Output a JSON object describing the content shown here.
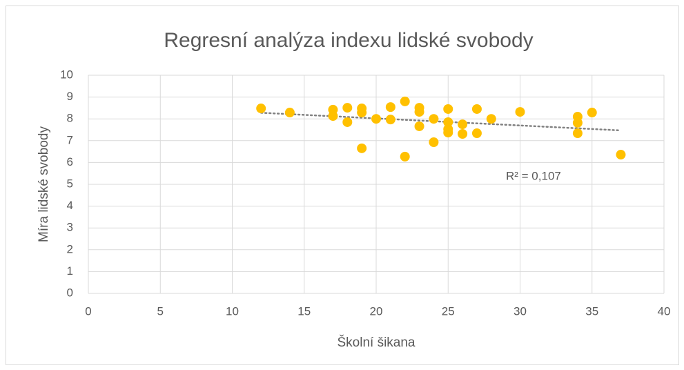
{
  "chart_data": {
    "type": "scatter",
    "title": "Regresní analýza indexu lidské svobody",
    "x_label": "Školní šikana",
    "y_label": "Míra lidské svobody",
    "x": [
      12,
      14,
      17,
      17,
      18,
      18,
      19,
      19,
      19,
      20,
      21,
      21,
      22,
      22,
      23,
      23,
      23,
      24,
      24,
      25,
      25,
      25,
      25,
      26,
      26,
      27,
      27,
      28,
      30,
      34,
      34,
      34,
      35,
      37
    ],
    "values": [
      8.48,
      8.29,
      8.42,
      8.13,
      8.51,
      7.85,
      8.48,
      8.29,
      6.65,
      8.0,
      8.54,
      7.97,
      8.8,
      6.27,
      8.51,
      8.32,
      7.66,
      8.0,
      6.93,
      8.45,
      7.85,
      7.53,
      7.37,
      7.75,
      7.31,
      8.45,
      7.34,
      8.0,
      8.32,
      8.1,
      7.82,
      7.34,
      8.29,
      6.36
    ],
    "color": "#ffc000",
    "trendline_label": "R² = 0,107",
    "trendline_color": "#808080",
    "xlim": [
      0,
      40
    ],
    "xticks": [
      0,
      5,
      10,
      15,
      20,
      25,
      30,
      35,
      40
    ],
    "ylim": [
      0,
      10
    ],
    "yticks": [
      0,
      1,
      2,
      3,
      4,
      5,
      6,
      7,
      8,
      9,
      10
    ],
    "grid": true
  }
}
